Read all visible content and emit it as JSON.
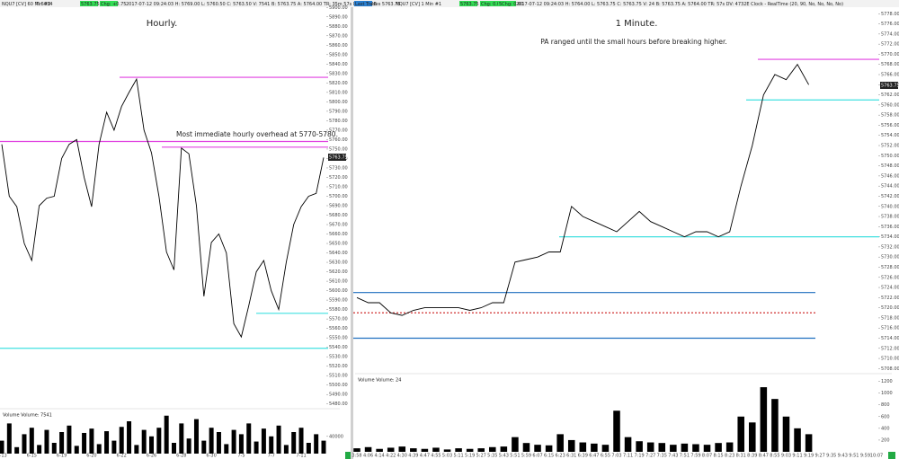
{
  "chart_data": [
    {
      "type": "line",
      "info": [
        "NQU7 [CV]  60 Min  #2",
        "T: 5034",
        "5763.75",
        "Chg: +0.75",
        "2017-07-12 09:24:03 H: 5769.00 L: 5760.50 C: 5763.50 V: 7541 B: 5763.75 A: 5764.00 TR: 35m 57s DV: 4732E"
      ],
      "title": "Hourly.",
      "annotation": "Most immediate hourly overhead at 5770-5780.",
      "last_price": "5763.75",
      "categories": [
        "6-13",
        null,
        null,
        null,
        "6-15",
        null,
        null,
        null,
        "6-19",
        null,
        null,
        null,
        "6-20",
        null,
        null,
        null,
        "6-22",
        null,
        null,
        null,
        "6-26",
        null,
        null,
        null,
        "6-28",
        null,
        null,
        null,
        "6-30",
        null,
        null,
        null,
        "7-5",
        null,
        null,
        null,
        "7-7",
        null,
        null,
        null,
        "7-11",
        null,
        null,
        null
      ],
      "values": [
        5755,
        5700,
        5689,
        5650,
        5632,
        5690,
        5698,
        5700,
        5740,
        5755,
        5760,
        5720,
        5689,
        5755,
        5789,
        5770,
        5795,
        5810,
        5824,
        5770,
        5746,
        5700,
        5641,
        5622,
        5751,
        5745,
        5690,
        5594,
        5651,
        5660,
        5640,
        5565,
        5551,
        5584,
        5620,
        5632,
        5600,
        5580,
        5630,
        5670,
        5689,
        5700,
        5703,
        5741
      ],
      "color": "#000000",
      "ylim": [
        5475,
        5905
      ],
      "yticks": [
        {
          "value": 5480,
          "label": "5480.00"
        },
        {
          "value": 5490,
          "label": "5490.00"
        },
        {
          "value": 5500,
          "label": "5500.00"
        },
        {
          "value": 5510,
          "label": "5510.00"
        },
        {
          "value": 5520,
          "label": "5520.00"
        },
        {
          "value": 5530,
          "label": "5530.00"
        },
        {
          "value": 5540,
          "label": "5540.00"
        },
        {
          "value": 5550,
          "label": "5550.00"
        },
        {
          "value": 5560,
          "label": "5560.00"
        },
        {
          "value": 5570,
          "label": "5570.00"
        },
        {
          "value": 5580,
          "label": "5580.00"
        },
        {
          "value": 5590,
          "label": "5590.00"
        },
        {
          "value": 5600,
          "label": "5600.00"
        },
        {
          "value": 5610,
          "label": "5610.00"
        },
        {
          "value": 5620,
          "label": "5620.00"
        },
        {
          "value": 5630,
          "label": "5630.00"
        },
        {
          "value": 5640,
          "label": "5640.00"
        },
        {
          "value": 5650,
          "label": "5650.00"
        },
        {
          "value": 5660,
          "label": "5660.00"
        },
        {
          "value": 5670,
          "label": "5670.00"
        },
        {
          "value": 5680,
          "label": "5680.00"
        },
        {
          "value": 5690,
          "label": "5690.00"
        },
        {
          "value": 5700,
          "label": "5700.00"
        },
        {
          "value": 5710,
          "label": "5710.00"
        },
        {
          "value": 5720,
          "label": "5720.00"
        },
        {
          "value": 5730,
          "label": "5730.00"
        },
        {
          "value": 5740,
          "label": "5740.00"
        },
        {
          "value": 5750,
          "label": "5750.00"
        },
        {
          "value": 5760,
          "label": "5760.00"
        },
        {
          "value": 5770,
          "label": "5770.00"
        },
        {
          "value": 5780,
          "label": "5780.00"
        },
        {
          "value": 5790,
          "label": "5790.00"
        },
        {
          "value": 5800,
          "label": "5800.00"
        },
        {
          "value": 5810,
          "label": "5810.00"
        },
        {
          "value": 5820,
          "label": "5820.00"
        },
        {
          "value": 5830,
          "label": "5830.00"
        },
        {
          "value": 5840,
          "label": "5840.00"
        },
        {
          "value": 5850,
          "label": "5850.00"
        },
        {
          "value": 5860,
          "label": "5860.00"
        },
        {
          "value": 5870,
          "label": "5870.00"
        },
        {
          "value": 5880,
          "label": "5880.00"
        },
        {
          "value": 5890,
          "label": "5890.00"
        },
        {
          "value": 5900,
          "label": "5900.00"
        }
      ],
      "levels": [
        {
          "value": 5826,
          "color": "#e040e0",
          "style": "solid"
        },
        {
          "value": 5758,
          "color": "#e040e0",
          "style": "solid"
        },
        {
          "value": 5752,
          "color": "#e040e0",
          "style": "solid"
        },
        {
          "value": 5576,
          "color": "#40e0e0",
          "style": "solid"
        },
        {
          "value": 5539,
          "color": "#40e0e0",
          "style": "solid"
        }
      ],
      "volume": {
        "label": "Volume  Volume: 7541",
        "color": "#000000",
        "ylim": [
          0,
          100000
        ],
        "yticks": [
          40000
        ],
        "values": [
          30000,
          70000,
          15000,
          45000,
          60000,
          20000,
          55000,
          25000,
          50000,
          65000,
          18000,
          48000,
          58000,
          22000,
          52000,
          30000,
          62000,
          75000,
          20000,
          55000,
          40000,
          60000,
          88000,
          25000,
          70000,
          35000,
          80000,
          30000,
          60000,
          50000,
          22000,
          55000,
          45000,
          70000,
          28000,
          58000,
          40000,
          65000,
          20000,
          50000,
          60000,
          25000,
          45000,
          30000
        ]
      }
    },
    {
      "type": "line",
      "info": [
        "Last Trades 5763.75",
        "NQU7 [CV]  1 Min  #1",
        "5763.75",
        "Chg: 0.00",
        "5Chg: 0.00",
        "2017-07-12 09:24:03 H: 5764.00 L: 5763.75 C: 5763.75 V: 24 B: 5763.75 A: 5764.00 TR: 57s DV: 4732E Clock - RealTime  (20, 90, No, No, No, No)"
      ],
      "title": "1 Minute.",
      "annotation": "PA ranged until the small hours before breaking higher.",
      "last_price": "5763.75",
      "categories": [
        "3:58",
        "4:06",
        "4:14",
        "4:22",
        "4:30",
        "4:39",
        "4:47",
        "4:55",
        "5:03",
        "5:11",
        "5:19",
        "5:27",
        "5:35",
        "5:43",
        "5:51",
        "5:59",
        "6:07",
        "6:15",
        "6:23",
        "6:31",
        "6:39",
        "6:47",
        "6:55",
        "7:03",
        "7:11",
        "7:19",
        "7:27",
        "7:35",
        "7:43",
        "7:51",
        "7:59",
        "8:07",
        "8:15",
        "8:23",
        "8:31",
        "8:39",
        "8:47",
        "8:55",
        "9:03",
        "9:11",
        "9:19",
        "9:27",
        "9:35",
        "9:43",
        "9:51",
        "9:59",
        "10:07"
      ],
      "values": [
        5722,
        5721,
        5721,
        5719,
        5718.5,
        5719.5,
        5720,
        5720,
        5720,
        5720,
        5719.5,
        5720,
        5721,
        5721,
        5729,
        5729.5,
        5730,
        5731,
        5731,
        5740,
        5738,
        5737,
        5736,
        5735,
        5737,
        5739,
        5737,
        5736,
        5735,
        5734,
        5735,
        5735,
        5734,
        5735,
        5744,
        5752,
        5762,
        5766,
        5765,
        5768,
        5764,
        null,
        null,
        null,
        null,
        null,
        null
      ],
      "color": "#000000",
      "ylim": [
        5707,
        5780
      ],
      "yticks": [
        {
          "value": 5708,
          "label": "5708.00"
        },
        {
          "value": 5710,
          "label": "5710.00"
        },
        {
          "value": 5712,
          "label": "5712.00"
        },
        {
          "value": 5714,
          "label": "5714.00"
        },
        {
          "value": 5716,
          "label": "5716.00"
        },
        {
          "value": 5718,
          "label": "5718.00"
        },
        {
          "value": 5720,
          "label": "5720.00"
        },
        {
          "value": 5722,
          "label": "5722.00"
        },
        {
          "value": 5724,
          "label": "5724.00"
        },
        {
          "value": 5726,
          "label": "5726.00"
        },
        {
          "value": 5728,
          "label": "5728.00"
        },
        {
          "value": 5730,
          "label": "5730.00"
        },
        {
          "value": 5732,
          "label": "5732.00"
        },
        {
          "value": 5734,
          "label": "5734.00"
        },
        {
          "value": 5736,
          "label": "5736.00"
        },
        {
          "value": 5738,
          "label": "5738.00"
        },
        {
          "value": 5740,
          "label": "5740.00"
        },
        {
          "value": 5742,
          "label": "5742.00"
        },
        {
          "value": 5744,
          "label": "5744.00"
        },
        {
          "value": 5746,
          "label": "5746.00"
        },
        {
          "value": 5748,
          "label": "5748.00"
        },
        {
          "value": 5750,
          "label": "5750.00"
        },
        {
          "value": 5752,
          "label": "5752.00"
        },
        {
          "value": 5754,
          "label": "5754.00"
        },
        {
          "value": 5756,
          "label": "5756.00"
        },
        {
          "value": 5758,
          "label": "5758.00"
        },
        {
          "value": 5760,
          "label": "5760.00"
        },
        {
          "value": 5762,
          "label": "5762.00"
        },
        {
          "value": 5764,
          "label": "5764.00"
        },
        {
          "value": 5766,
          "label": "5766.00"
        },
        {
          "value": 5768,
          "label": "5768.00"
        },
        {
          "value": 5770,
          "label": "5770.00"
        },
        {
          "value": 5772,
          "label": "5772.00"
        },
        {
          "value": 5774,
          "label": "5774.00"
        },
        {
          "value": 5776,
          "label": "5776.00"
        },
        {
          "value": 5778,
          "label": "5778.00"
        }
      ],
      "levels": [
        {
          "value": 5769,
          "color": "#e040e0",
          "style": "solid"
        },
        {
          "value": 5761,
          "color": "#40e0e0",
          "style": "solid"
        },
        {
          "value": 5734,
          "color": "#40e0e0",
          "style": "solid"
        },
        {
          "value": 5723,
          "color": "#1f6fbf",
          "style": "solid"
        },
        {
          "value": 5719,
          "color": "#d03030",
          "style": "dotted"
        },
        {
          "value": 5714,
          "color": "#1f6fbf",
          "style": "solid"
        }
      ],
      "volume": {
        "label": "Volume  Volume: 24",
        "color": "#000000",
        "ylim": [
          0,
          1300
        ],
        "yticks": [
          200,
          400,
          600,
          800,
          1000,
          1200
        ],
        "values": [
          60,
          80,
          50,
          70,
          90,
          60,
          50,
          70,
          40,
          60,
          50,
          60,
          80,
          90,
          250,
          150,
          120,
          110,
          300,
          200,
          160,
          140,
          120,
          700,
          250,
          180,
          160,
          150,
          120,
          140,
          130,
          120,
          150,
          160,
          600,
          500,
          1100,
          900,
          600,
          400,
          300,
          null,
          null,
          null,
          null,
          null,
          null
        ]
      }
    }
  ]
}
